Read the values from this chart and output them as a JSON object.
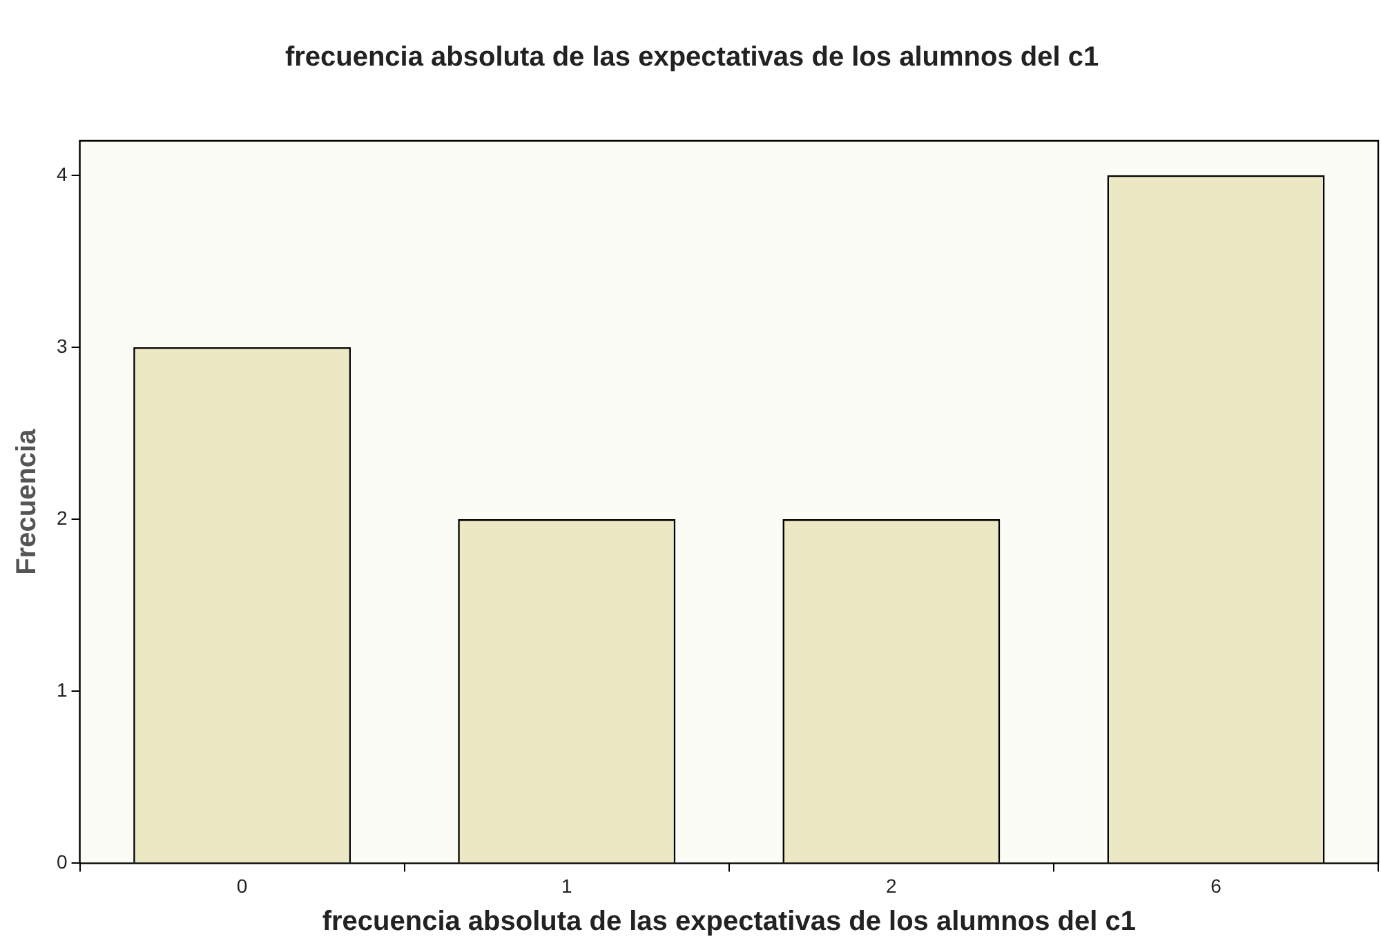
{
  "chart_data": {
    "type": "bar",
    "title": "frecuencia absoluta de las expectativas de los alumnos del c1",
    "xlabel": "frecuencia absoluta de las expectativas de los alumnos del c1",
    "ylabel": "Frecuencia",
    "categories": [
      "0",
      "1",
      "2",
      "6"
    ],
    "values": [
      3,
      2,
      2,
      4
    ],
    "color": "#ede8c4",
    "ylim": [
      0,
      4.2
    ],
    "yticks": [
      0,
      1,
      2,
      3,
      4
    ],
    "grid": false
  }
}
